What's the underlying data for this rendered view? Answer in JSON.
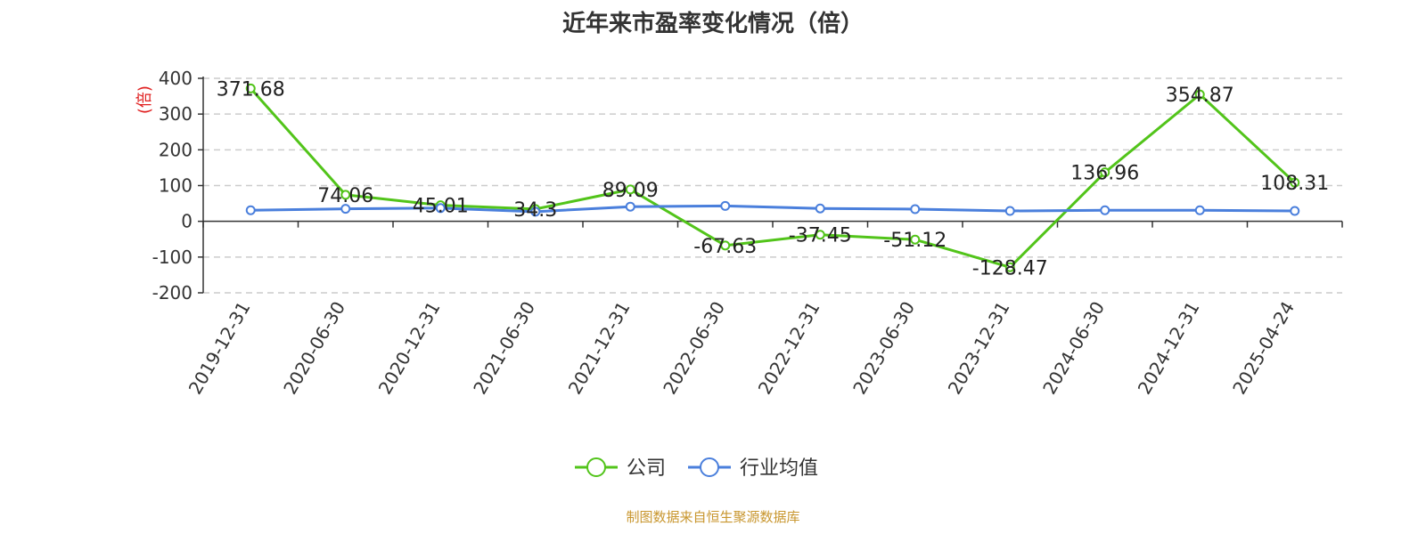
{
  "chart_data": {
    "type": "line",
    "title": "近年来市盈率变化情况（倍）",
    "ylabel": "(倍)",
    "ylim": [
      -200,
      400
    ],
    "yticks": [
      400,
      300,
      200,
      100,
      0,
      -100,
      -200
    ],
    "categories": [
      "2019-12-31",
      "2020-06-30",
      "2020-12-31",
      "2021-06-30",
      "2021-12-31",
      "2022-06-30",
      "2022-12-31",
      "2023-06-30",
      "2023-12-31",
      "2024-06-30",
      "2024-12-31",
      "2025-04-24"
    ],
    "grid": true,
    "legend_position": "bottom",
    "series": [
      {
        "name": "公司",
        "color": "#52c41a",
        "values": [
          371.68,
          74.06,
          45.01,
          34.3,
          89.09,
          -67.63,
          -37.45,
          -51.12,
          -128.47,
          136.96,
          354.87,
          108.31
        ],
        "labels": [
          "371.68",
          "74.06",
          "45.01",
          "34.3",
          "89.09",
          "-67.63",
          "-37.45",
          "-51.12",
          "-128.47",
          "136.96",
          "354.87",
          "108.31"
        ]
      },
      {
        "name": "行业均值",
        "color": "#4a7fdc",
        "values": [
          31,
          35,
          37,
          27,
          41,
          43,
          36,
          34,
          29,
          31,
          31,
          29
        ]
      }
    ]
  },
  "source_note": "制图数据来自恒生聚源数据库",
  "source_color": "#c8962e",
  "ylabel_color": "#e02020"
}
